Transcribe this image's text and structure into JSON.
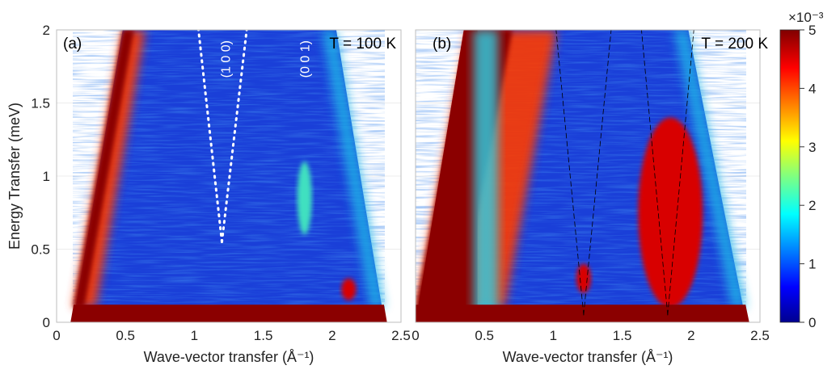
{
  "chart_data": [
    {
      "type": "heatmap",
      "panel_label": "(a)",
      "annotation": "T = 100 K",
      "xlabel": "Wave-vector transfer (Å⁻¹)",
      "ylabel": "Energy Transfer (meV)",
      "xlim": [
        0,
        2.5
      ],
      "ylim": [
        0,
        2
      ],
      "xticks": [
        "0",
        "0.5",
        "1",
        "1.5",
        "2",
        "2.5"
      ],
      "yticks": [
        "0",
        "0.5",
        "1",
        "1.5",
        "2"
      ],
      "grid": true,
      "coverage_q": {
        "E": [
          0.1,
          2.0
        ],
        "qmin": [
          0.12,
          0.48
        ],
        "qmax": [
          2.38,
          2.03
        ]
      },
      "elastic_cutoff_meV": 0.12,
      "features": [
        {
          "label": "(1 0 0)",
          "style": "white-dotted",
          "q_vertex": 1.2,
          "E_vertex": 0.55,
          "q_top": [
            1.03,
            1.38
          ],
          "E_top": 2.0
        },
        {
          "label": "(0 0 1)",
          "q": 1.8,
          "E_range": [
            0.6,
            1.1
          ],
          "intensity": 2.5
        },
        {
          "label": "",
          "q": 2.12,
          "E_range": [
            0.15,
            0.3
          ],
          "intensity": 5
        }
      ]
    },
    {
      "type": "heatmap",
      "panel_label": "(b)",
      "annotation": "T = 200 K",
      "xlabel": "Wave-vector transfer (Å⁻¹)",
      "ylabel": "",
      "xlim": [
        0,
        2.5
      ],
      "ylim": [
        0,
        2
      ],
      "xticks": [
        "0",
        "0.5",
        "1",
        "1.5",
        "2",
        "2.5"
      ],
      "yticks": [],
      "grid": true,
      "coverage_q": {
        "E": [
          0.1,
          2.0
        ],
        "qmin": [
          0.0,
          0.38
        ],
        "qmax": [
          2.4,
          1.98
        ]
      },
      "elastic_cutoff_meV": 0.12,
      "features": [
        {
          "label": "",
          "style": "black-dashed",
          "q_vertex": 1.22,
          "E_vertex": 0.05,
          "q_top": [
            1.02,
            1.42
          ],
          "E_top": 2.0
        },
        {
          "label": "",
          "style": "black-dashed",
          "q_vertex": 1.83,
          "E_vertex": 0.05,
          "q_top": [
            1.64,
            2.02
          ],
          "E_top": 2.0
        },
        {
          "label": "",
          "q": 1.22,
          "E_range": [
            0.2,
            0.4
          ],
          "intensity": 5
        },
        {
          "label": "",
          "q": 1.85,
          "E_range": [
            0.1,
            1.4
          ],
          "intensity": 4.5
        }
      ]
    }
  ],
  "colorbar": {
    "range": [
      0,
      5
    ],
    "ticks": [
      "0",
      "1",
      "2",
      "3",
      "4",
      "5"
    ],
    "exponent_label": "×10⁻³",
    "colormap": "jet"
  }
}
